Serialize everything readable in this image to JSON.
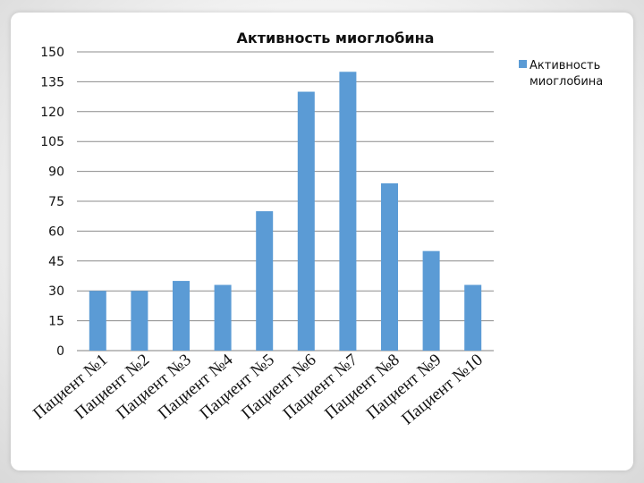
{
  "chart_data": {
    "type": "bar",
    "title": "Активность миоглобина",
    "categories": [
      "Пациент №1",
      "Пациент №2",
      "Пациент №3",
      "Пациент №4",
      "Пациент №5",
      "Пациент №6",
      "Пациент №7",
      "Пациент №8",
      "Пациент №9",
      "Пациент №10"
    ],
    "series": [
      {
        "name": "Активность миоглобина",
        "values": [
          30,
          30,
          35,
          33,
          70,
          130,
          140,
          84,
          50,
          33
        ]
      }
    ],
    "ylim": [
      0,
      150
    ],
    "yticks": [
      0,
      15,
      30,
      45,
      60,
      75,
      90,
      105,
      120,
      135,
      150
    ],
    "grid": true,
    "legend_position": "right",
    "legend_lines": [
      "Активность",
      "миоглобина"
    ],
    "bar_color": "#5b9bd5"
  }
}
